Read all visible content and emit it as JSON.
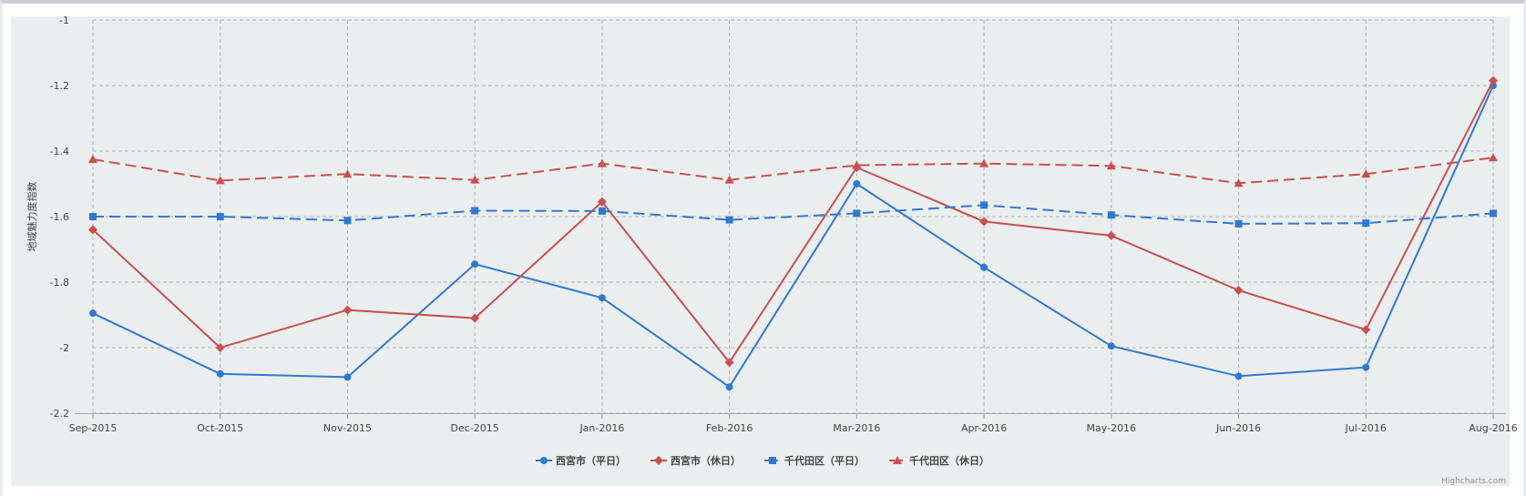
{
  "chart_data": {
    "type": "line",
    "ylabel": "地域魅力度指数",
    "xlabel": "",
    "title": "",
    "categories": [
      "Sep-2015",
      "Oct-2015",
      "Nov-2015",
      "Dec-2015",
      "Jan-2016",
      "Feb-2016",
      "Mar-2016",
      "Apr-2016",
      "May-2016",
      "Jun-2016",
      "Jul-2016",
      "Aug-2016"
    ],
    "ylim": [
      -2.2,
      -1
    ],
    "yticks": [
      -1,
      -1.2,
      -1.4,
      -1.6,
      -1.8,
      -2,
      -2.2
    ],
    "ytick_labels": [
      "-1",
      "-1.2",
      "-1.4",
      "-1.6",
      "-1.8",
      "-2",
      "-2.2"
    ],
    "grid": true,
    "legend_position": "bottom-center",
    "credit": "Highcharts.com",
    "series": [
      {
        "name": "西宮市（平日）",
        "color": "#3079d0",
        "marker": "circle",
        "dash": false,
        "values": [
          -1.895,
          -2.08,
          -2.09,
          -1.745,
          -1.848,
          -2.12,
          -1.5,
          -1.755,
          -1.995,
          -2.087,
          -2.06,
          -1.2
        ]
      },
      {
        "name": "西宮市（休日）",
        "color": "#c8504e",
        "marker": "diamond",
        "dash": false,
        "values": [
          -1.64,
          -2.0,
          -1.885,
          -1.91,
          -1.555,
          -2.045,
          -1.45,
          -1.615,
          -1.658,
          -1.825,
          -1.945,
          -1.185
        ]
      },
      {
        "name": "千代田区（平日）",
        "color": "#3079d0",
        "marker": "square",
        "dash": true,
        "values": [
          -1.6,
          -1.6,
          -1.612,
          -1.582,
          -1.583,
          -1.61,
          -1.59,
          -1.565,
          -1.595,
          -1.622,
          -1.62,
          -1.59
        ]
      },
      {
        "name": "千代田区（休日）",
        "color": "#c8504e",
        "marker": "triangle",
        "dash": true,
        "values": [
          -1.425,
          -1.49,
          -1.47,
          -1.488,
          -1.438,
          -1.488,
          -1.443,
          -1.438,
          -1.445,
          -1.498,
          -1.47,
          -1.42
        ]
      }
    ]
  }
}
